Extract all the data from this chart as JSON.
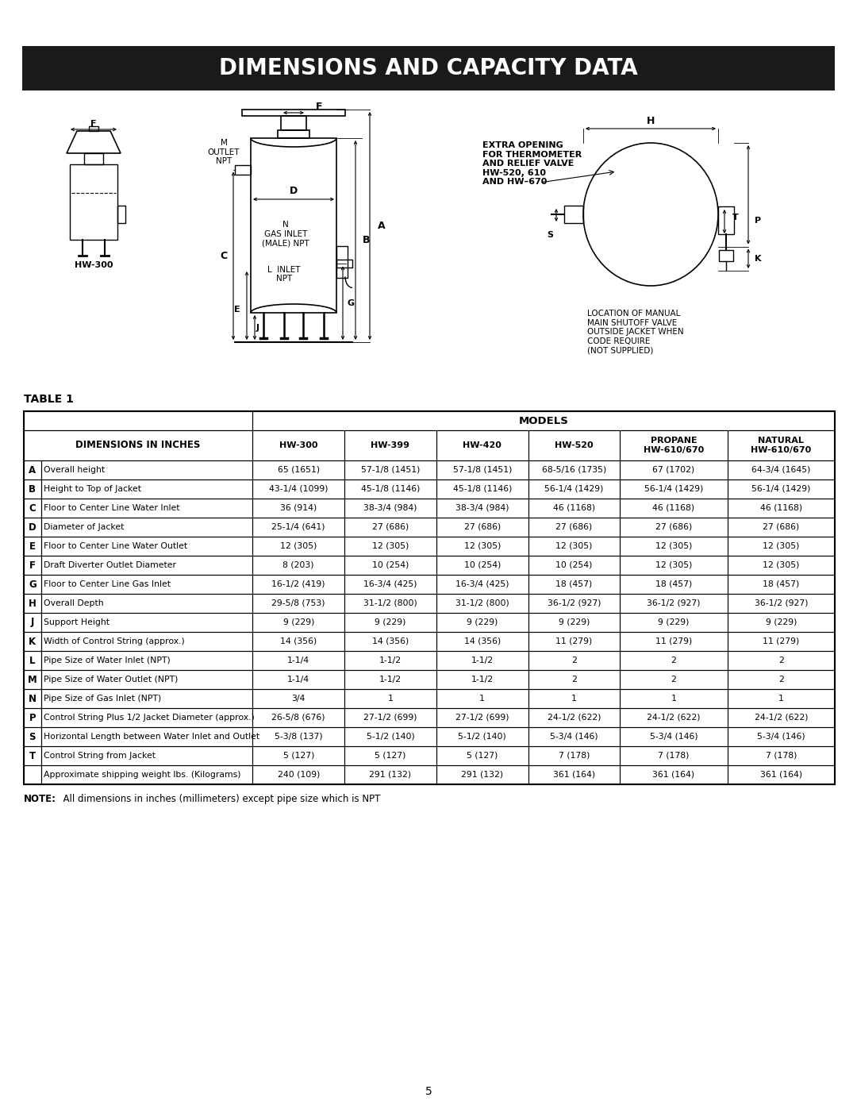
{
  "title": "DIMENSIONS AND CAPACITY DATA",
  "title_bg": "#1a1a1a",
  "title_color": "#ffffff",
  "table_label": "TABLE 1",
  "rows": [
    [
      "A",
      "Overall height",
      "65 (1651)",
      "57-1/8 (1451)",
      "57-1/8 (1451)",
      "68-5/16 (1735)",
      "67 (1702)",
      "64-3/4 (1645)"
    ],
    [
      "B",
      "Height to Top of Jacket",
      "43-1/4 (1099)",
      "45-1/8 (1146)",
      "45-1/8 (1146)",
      "56-1/4 (1429)",
      "56-1/4 (1429)",
      "56-1/4 (1429)"
    ],
    [
      "C",
      "Floor to Center Line Water Inlet",
      "36 (914)",
      "38-3/4 (984)",
      "38-3/4 (984)",
      "46 (1168)",
      "46 (1168)",
      "46 (1168)"
    ],
    [
      "D",
      "Diameter of Jacket",
      "25-1/4 (641)",
      "27 (686)",
      "27 (686)",
      "27 (686)",
      "27 (686)",
      "27 (686)"
    ],
    [
      "E",
      "Floor to Center Line Water Outlet",
      "12 (305)",
      "12 (305)",
      "12 (305)",
      "12 (305)",
      "12 (305)",
      "12 (305)"
    ],
    [
      "F",
      "Draft Diverter Outlet Diameter",
      "8 (203)",
      "10 (254)",
      "10 (254)",
      "10 (254)",
      "12 (305)",
      "12 (305)"
    ],
    [
      "G",
      "Floor to Center Line Gas Inlet",
      "16-1/2 (419)",
      "16-3/4 (425)",
      "16-3/4 (425)",
      "18 (457)",
      "18 (457)",
      "18 (457)"
    ],
    [
      "H",
      "Overall Depth",
      "29-5/8 (753)",
      "31-1/2 (800)",
      "31-1/2 (800)",
      "36-1/2 (927)",
      "36-1/2 (927)",
      "36-1/2 (927)"
    ],
    [
      "J",
      "Support Height",
      "9 (229)",
      "9 (229)",
      "9 (229)",
      "9 (229)",
      "9 (229)",
      "9 (229)"
    ],
    [
      "K",
      "Width of Control String (approx.)",
      "14 (356)",
      "14 (356)",
      "14 (356)",
      "11 (279)",
      "11 (279)",
      "11 (279)"
    ],
    [
      "L",
      "Pipe Size of Water Inlet (NPT)",
      "1-1/4",
      "1-1/2",
      "1-1/2",
      "2",
      "2",
      "2"
    ],
    [
      "M",
      "Pipe Size of Water Outlet (NPT)",
      "1-1/4",
      "1-1/2",
      "1-1/2",
      "2",
      "2",
      "2"
    ],
    [
      "N",
      "Pipe Size of Gas Inlet (NPT)",
      "3/4",
      "1",
      "1",
      "1",
      "1",
      "1"
    ],
    [
      "P",
      "Control String Plus 1/2 Jacket Diameter (approx.)",
      "26-5/8 (676)",
      "27-1/2 (699)",
      "27-1/2 (699)",
      "24-1/2 (622)",
      "24-1/2 (622)",
      "24-1/2 (622)"
    ],
    [
      "S",
      "Horizontal Length between Water Inlet and Outlet",
      "5-3/8 (137)",
      "5-1/2 (140)",
      "5-1/2 (140)",
      "5-3/4 (146)",
      "5-3/4 (146)",
      "5-3/4 (146)"
    ],
    [
      "T",
      "Control String from Jacket",
      "5 (127)",
      "5 (127)",
      "5 (127)",
      "7 (178)",
      "7 (178)",
      "7 (178)"
    ],
    [
      "",
      "Approximate shipping weight lbs. (Kilograms)",
      "240 (109)",
      "291 (132)",
      "291 (132)",
      "361 (164)",
      "361 (164)",
      "361 (164)"
    ]
  ],
  "note_bold": "NOTE:",
  "note_rest": "  All dimensions in inches (millimeters) except pipe size which is NPT",
  "page_number": "5",
  "extra_opening_text": "EXTRA OPENING\nFOR THERMOMETER\nAND RELIEF VALVE\nHW-520, 610\nAND HW–670",
  "location_text": "LOCATION OF MANUAL\nMAIN SHUTOFF VALVE\nOUTSIDE JACKET WHEN\nCODE REQUIRE\n(NOT SUPPLIED)"
}
